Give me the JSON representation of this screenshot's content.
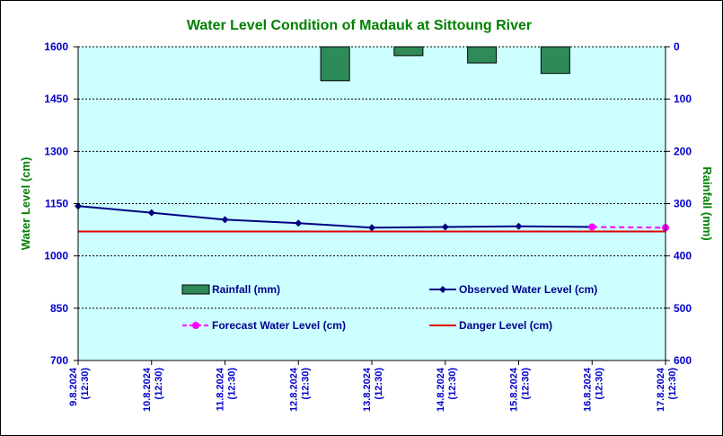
{
  "chart_data": {
    "type": "line",
    "title": "Water Level Condition of Madauk at Sittoung River",
    "ylabel_left": "Water Level (cm)",
    "ylabel_right": "Rainfall (mm)",
    "categories": [
      [
        "9.8.2024",
        "(12:30)"
      ],
      [
        "10.8.2024",
        "(12:30)"
      ],
      [
        "11.8.2024",
        "(12:30)"
      ],
      [
        "12.8.2024",
        "(12:30)"
      ],
      [
        "13.8.2024",
        "(12:30)"
      ],
      [
        "14.8.2024",
        "(12:30)"
      ],
      [
        "15.8.2024",
        "(12:30)"
      ],
      [
        "16.8.2024",
        "(12:30)"
      ],
      [
        "17.8.2024",
        "(12:30)"
      ]
    ],
    "ylim_left": [
      700,
      1600
    ],
    "yticks_left": [
      700,
      850,
      1000,
      1150,
      1300,
      1450,
      1600
    ],
    "ylim_right": [
      0,
      600
    ],
    "yticks_right": [
      0,
      100,
      200,
      300,
      400,
      500,
      600
    ],
    "right_axis_inverted": true,
    "grid": "horizontal dashed",
    "series": [
      {
        "name": "Rainfall (mm)",
        "kind": "bar",
        "axis": "right",
        "values": [
          null,
          null,
          null,
          null,
          65,
          17,
          31,
          51,
          null
        ],
        "color": "#2e8b57"
      },
      {
        "name": "Observed Water Level (cm)",
        "kind": "line",
        "axis": "left",
        "values": [
          1143,
          1124,
          1104,
          1094,
          1081,
          1083,
          1085,
          1083,
          null
        ],
        "color": "#000080"
      },
      {
        "name": "Forecast Water Level (cm)",
        "kind": "line-dashed",
        "axis": "left",
        "values": [
          null,
          null,
          null,
          null,
          null,
          null,
          null,
          1083,
          1081
        ],
        "color": "#ff00ff"
      },
      {
        "name": "Danger Level (cm)",
        "kind": "hline",
        "axis": "left",
        "value": 1070,
        "color": "#e00000"
      }
    ],
    "legend": [
      {
        "label": "Rainfall (mm)",
        "series": 0
      },
      {
        "label": "Observed Water Level (cm)",
        "series": 1
      },
      {
        "label": "Forecast Water Level (cm)",
        "series": 2
      },
      {
        "label": "Danger Level (cm)",
        "series": 3
      }
    ],
    "colors": {
      "title": "#008000",
      "axis_label": "#008000",
      "tick_label": "#0000cc",
      "plot_bg": "#ccffff"
    }
  }
}
